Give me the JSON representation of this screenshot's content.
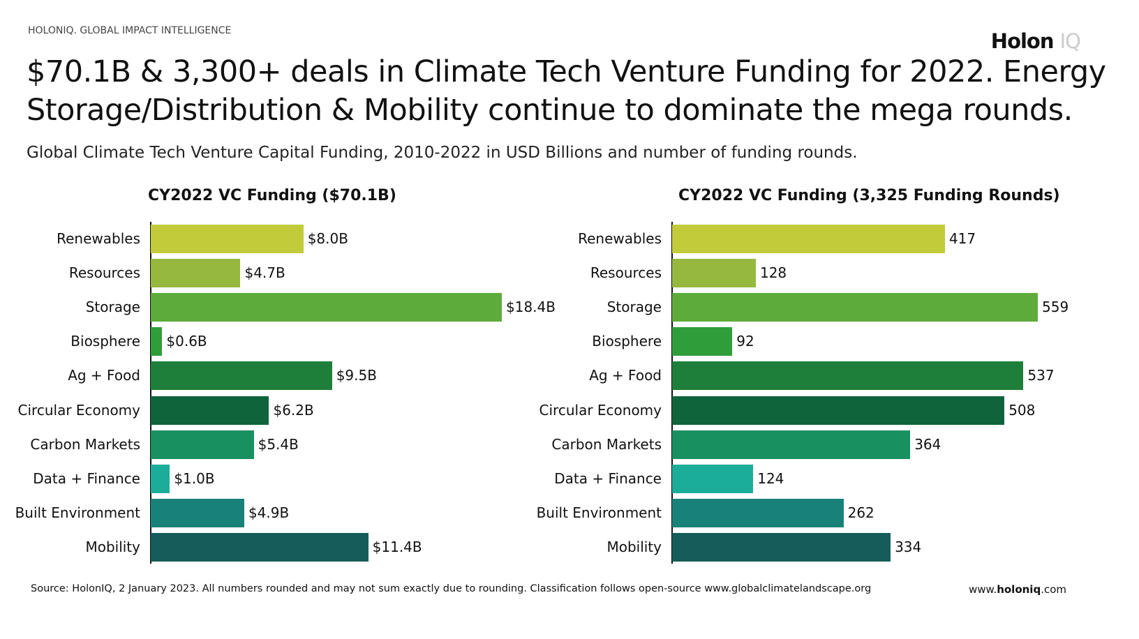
{
  "header": {
    "top_label": "HOLONIQ. GLOBAL IMPACT INTELLIGENCE",
    "logo_main": "Holon",
    "logo_suffix": "IQ",
    "title": "$70.1B & 3,300+ deals in Climate Tech Venture Funding for 2022. Energy Storage/Distribution & Mobility continue to dominate the mega rounds.",
    "subtitle": "Global Climate Tech Venture Capital Funding, 2010-2022 in USD Billions and number of funding rounds."
  },
  "chart_data": [
    {
      "type": "bar",
      "orientation": "horizontal",
      "title": "CY2022 VC Funding ($70.1B)",
      "categories": [
        "Renewables",
        "Resources",
        "Storage",
        "Biosphere",
        "Ag + Food",
        "Circular Economy",
        "Carbon Markets",
        "Data + Finance",
        "Built Environment",
        "Mobility"
      ],
      "values": [
        8.0,
        4.7,
        18.4,
        0.6,
        9.5,
        6.2,
        5.4,
        1.0,
        4.9,
        11.4
      ],
      "labels": [
        "$8.0B",
        "$4.7B",
        "$18.4B",
        "$0.6B",
        "$9.5B",
        "$6.2B",
        "$5.4B",
        "$1.0B",
        "$4.9B",
        "$11.4B"
      ],
      "unit": "USD Billions"
    },
    {
      "type": "bar",
      "orientation": "horizontal",
      "title": "CY2022 VC Funding (3,325 Funding Rounds)",
      "categories": [
        "Renewables",
        "Resources",
        "Storage",
        "Biosphere",
        "Ag + Food",
        "Circular Economy",
        "Carbon Markets",
        "Data + Finance",
        "Built Environment",
        "Mobility"
      ],
      "values": [
        417,
        128,
        559,
        92,
        537,
        508,
        364,
        124,
        262,
        334
      ],
      "labels": [
        "417",
        "128",
        "559",
        "92",
        "537",
        "508",
        "364",
        "124",
        "262",
        "334"
      ]
    }
  ],
  "colors": [
    "#c2cc3b",
    "#96b83f",
    "#5dab3a",
    "#2f9e3a",
    "#1e7f3a",
    "#10643c",
    "#189060",
    "#1cac9a",
    "#18827a",
    "#165c5a"
  ],
  "footer": {
    "source": "Source: HolonIQ, 2 January 2023. All numbers rounded and may not sum exactly due to rounding. Classification follows open-source www.globalclimatelandscape.org",
    "website_prefix": "www.",
    "website_bold": "holoniq",
    ".suffix": "",
    "website_suffix": ".com"
  }
}
